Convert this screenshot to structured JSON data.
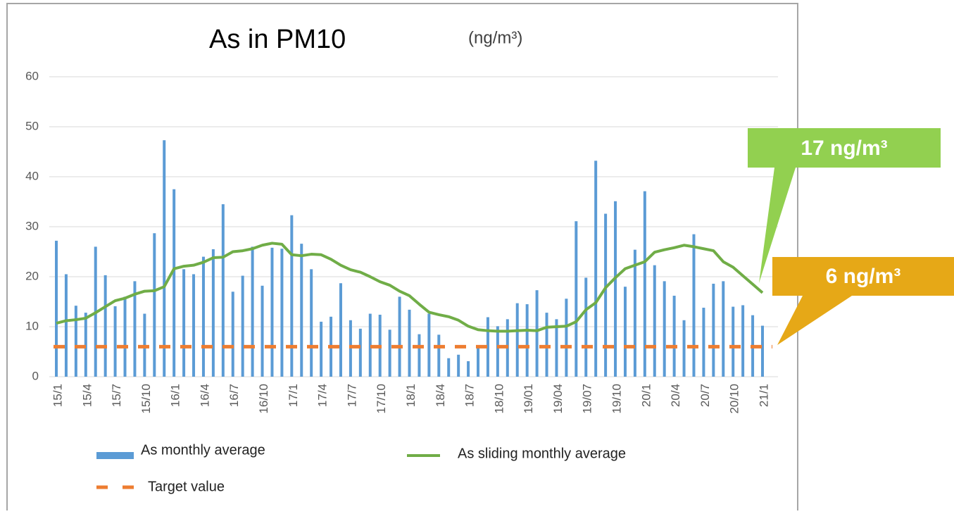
{
  "chart_data": {
    "type": "bar_line",
    "title": "As in PM10",
    "unit": "(ng/m³)",
    "categories": [
      "15/1",
      null,
      null,
      "15/4",
      null,
      null,
      "15/7",
      null,
      null,
      "15/10",
      null,
      null,
      "16/1",
      null,
      null,
      "16/4",
      null,
      null,
      "16/7",
      null,
      null,
      "16/10",
      null,
      null,
      "17/1",
      null,
      null,
      "17/4",
      null,
      null,
      "17/7",
      null,
      null,
      "17/10",
      null,
      null,
      "18/1",
      null,
      null,
      "18/4",
      null,
      null,
      "18/7",
      null,
      null,
      "18/10",
      null,
      null,
      "19/01",
      null,
      null,
      "19/04",
      null,
      null,
      "19/07",
      null,
      null,
      "19/10",
      null,
      null,
      "20/1",
      null,
      null,
      "20/4",
      null,
      null,
      "20/7",
      null,
      null,
      "20/10",
      null,
      null,
      "21/1"
    ],
    "series": [
      {
        "name": "As monthly average",
        "color": "#5b9bd5",
        "kind": "bar",
        "values": [
          27.2,
          20.5,
          14.2,
          12.8,
          26,
          20.3,
          14.1,
          16,
          19.1,
          12.6,
          28.7,
          47.3,
          37.5,
          21.5,
          20.5,
          24,
          25.5,
          34.5,
          17,
          20.2,
          26,
          18.2,
          25.8,
          25.6,
          32.3,
          26.6,
          21.5,
          11,
          12,
          18.7,
          11.3,
          9.6,
          12.6,
          12.4,
          9.4,
          16,
          13.4,
          8.5,
          12.6,
          8.4,
          3.7,
          4.4,
          3.1,
          5.8,
          11.9,
          10.1,
          11.5,
          14.7,
          14.5,
          17.3,
          12.8,
          11.5,
          15.6,
          31.1,
          19.8,
          43.2,
          32.6,
          35.1,
          18,
          25.4,
          37.1,
          22.3,
          19.1,
          16.2,
          11.3,
          28.5,
          13.8,
          18.6,
          19.1,
          14,
          14.3,
          12.3,
          10.2
        ]
      },
      {
        "name": "As sliding monthly average",
        "color": "#70ad47",
        "kind": "line",
        "values": [
          10.7,
          11.2,
          11.4,
          11.7,
          12.8,
          14,
          15.2,
          15.7,
          16.5,
          17.1,
          17.2,
          18,
          21.6,
          22.1,
          22.3,
          22.9,
          23.8,
          23.9,
          25,
          25.2,
          25.6,
          26.3,
          26.7,
          26.5,
          24.4,
          24.2,
          24.5,
          24.4,
          23.5,
          22.3,
          21.4,
          20.9,
          20,
          19,
          18.3,
          17.1,
          16.2,
          14.5,
          12.9,
          12.4,
          12,
          11.3,
          10.1,
          9.4,
          9.2,
          9.1,
          9.1,
          9.2,
          9.3,
          9.2,
          9.9,
          10,
          10.1,
          11,
          13.4,
          14.8,
          17.8,
          19.8,
          21.6,
          22.3,
          23,
          24.9,
          25.4,
          25.8,
          26.3,
          26,
          25.6,
          25.2,
          23,
          21.9,
          20.2,
          18.5,
          16.8
        ]
      },
      {
        "name": "Target value",
        "color": "#ed7d31",
        "kind": "hline",
        "value": 6
      }
    ],
    "annotations": [
      "17 ng/m³",
      "6 ng/m³"
    ],
    "ylim": [
      0,
      60
    ],
    "yticks": [
      0,
      10,
      20,
      30,
      40,
      50,
      60
    ],
    "grid": true
  }
}
